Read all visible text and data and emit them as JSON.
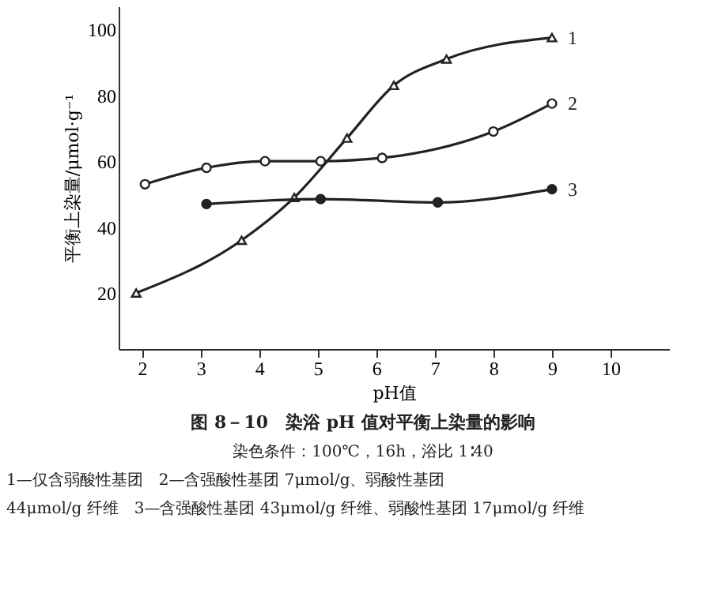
{
  "chart_data": {
    "type": "line",
    "title": "图 8－10　染浴 pH 值对平衡上染量的影响",
    "subtitle": "染色条件：100℃，16h，浴比 1∶40",
    "xlabel": "pH值",
    "ylabel": "平衡上染量/μmol·g⁻¹",
    "annotations": [
      "1—仅含弱酸性基团　2—含强酸性基团 7μmol/g、弱酸性基团",
      "44μmol/g 纤维　3—含强酸性基团 43μmol/g 纤维、弱酸性基团 17μmol/g 纤维"
    ],
    "xlim": [
      1.6,
      11
    ],
    "ylim": [
      3,
      107
    ],
    "xticks": [
      2,
      3,
      4,
      5,
      6,
      7,
      8,
      9,
      10
    ],
    "yticks": [
      20,
      40,
      60,
      80,
      100
    ],
    "grid": false,
    "line_style": "solid",
    "series": [
      {
        "name": "1",
        "color": "#222222",
        "marker": "triangle",
        "x": [
          1.9,
          3.7,
          4.6,
          5.5,
          6.3,
          7.2,
          9
        ],
        "values": [
          20,
          36,
          49,
          67,
          83,
          91,
          97.5
        ]
      },
      {
        "name": "2",
        "color": "#222222",
        "marker": "circle",
        "x": [
          2.05,
          3.1,
          4.1,
          5.05,
          6.1,
          8,
          9
        ],
        "values": [
          53,
          58,
          60,
          60,
          61,
          69,
          77.5
        ]
      },
      {
        "name": "3",
        "color": "#222222",
        "marker": "circle",
        "x": [
          3.1,
          5.05,
          7.05,
          9
        ],
        "values": [
          47,
          48.5,
          47.5,
          51.5
        ]
      }
    ]
  }
}
